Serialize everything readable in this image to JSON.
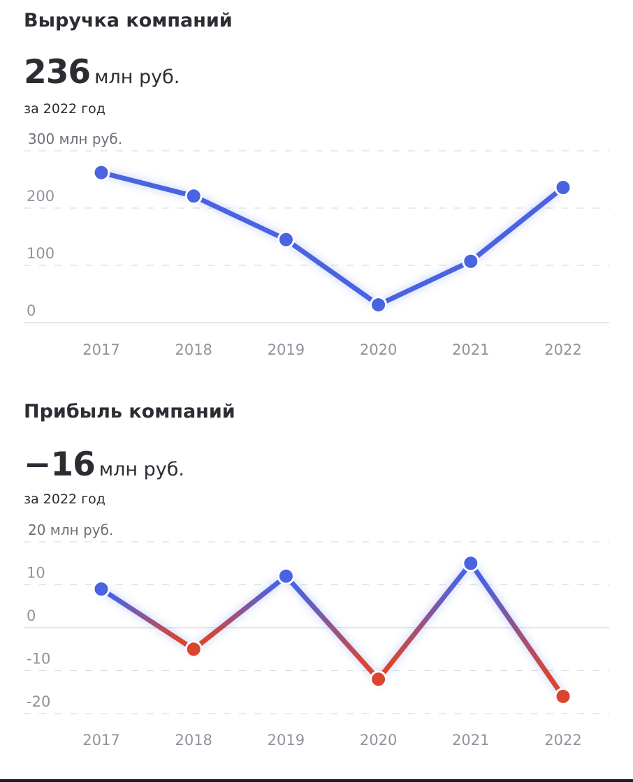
{
  "revenue": {
    "title": "Выручка компаний",
    "value": "236",
    "unit": "млн руб.",
    "period": "за 2022 год"
  },
  "profit": {
    "title": "Прибыль компаний",
    "value": "−16",
    "unit": "млн руб.",
    "period": "за 2022 год"
  },
  "colors": {
    "positive": "#4a63e0",
    "negative": "#db4530",
    "grid": "#dcdde1",
    "axis_text": "#8f939c"
  },
  "chart_data": [
    {
      "type": "line",
      "title": "Выручка компаний",
      "categories": [
        "2017",
        "2018",
        "2019",
        "2020",
        "2021",
        "2022"
      ],
      "values": [
        262,
        221,
        145,
        31,
        107,
        236
      ],
      "ylim": [
        0,
        300
      ],
      "yticks": [
        0,
        100,
        200,
        300
      ],
      "ytick_labels": [
        "0",
        "100",
        "200",
        "300 млн руб."
      ],
      "grid": true
    },
    {
      "type": "line",
      "title": "Прибыль компаний",
      "categories": [
        "2017",
        "2018",
        "2019",
        "2020",
        "2021",
        "2022"
      ],
      "values": [
        9,
        -5,
        12,
        -12,
        15,
        -16
      ],
      "ylim": [
        -20,
        20
      ],
      "yticks": [
        -20,
        -10,
        0,
        10,
        20
      ],
      "ytick_labels": [
        "-20",
        "-10",
        "0",
        "10",
        "20 млн руб."
      ],
      "grid": true
    }
  ]
}
